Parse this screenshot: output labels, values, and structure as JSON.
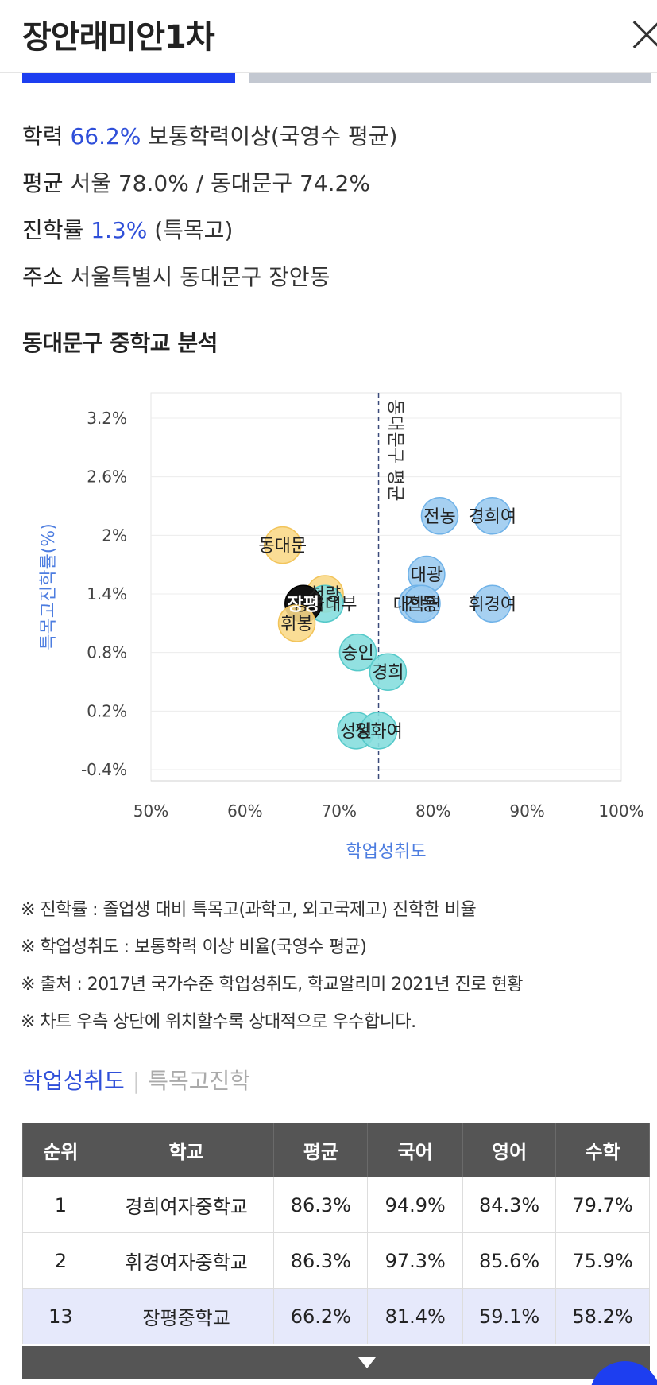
{
  "header": {
    "title": "장안래미안1차"
  },
  "info": {
    "achievement": {
      "label": "학력",
      "value": "66.2%",
      "suffix": "보통학력이상(국영수 평균)"
    },
    "average": {
      "label": "평균",
      "text": "서울 78.0% / 동대문구 74.2%"
    },
    "admission": {
      "label": "진학률",
      "value": "1.3%",
      "suffix": "(특목고)"
    },
    "address": {
      "label": "주소",
      "text": "서울특별시 동대문구 장안동"
    }
  },
  "section_title": "동대문구 중학교 분석",
  "chart_data": {
    "type": "scatter",
    "xlabel": "학업성취도",
    "ylabel": "특목고진학률(%)",
    "xlim": [
      50,
      100
    ],
    "ylim": [
      -0.4,
      3.6
    ],
    "x_ticks": [
      "50%",
      "60%",
      "70%",
      "80%",
      "90%",
      "100%"
    ],
    "y_ticks": [
      "3.2%",
      "2.6%",
      "2%",
      "1.4%",
      "0.8%",
      "0.2%",
      "-0.4%"
    ],
    "avg_line": {
      "x": 74.2,
      "label": "동대문구 평균"
    },
    "colors": {
      "blue": "#9ccbf0",
      "blue_stroke": "#6fb2e8",
      "yellow": "#fad98a",
      "yellow_stroke": "#f2c45a",
      "teal": "#86dede",
      "teal_stroke": "#55c9c9",
      "black": "#111111"
    },
    "points": [
      {
        "label": "전농",
        "x": 80.7,
        "y": 2.2,
        "group": "blue"
      },
      {
        "label": "경희여",
        "x": 86.3,
        "y": 2.2,
        "group": "blue"
      },
      {
        "label": "동대문",
        "x": 64.0,
        "y": 1.9,
        "group": "yellow"
      },
      {
        "label": "대광",
        "x": 79.3,
        "y": 1.6,
        "group": "blue"
      },
      {
        "label": "청량",
        "x": 68.5,
        "y": 1.4,
        "group": "yellow"
      },
      {
        "label": "동국대부",
        "x": 68.5,
        "y": 1.3,
        "group": "teal"
      },
      {
        "label": "장평",
        "x": 66.2,
        "y": 1.3,
        "group": "black"
      },
      {
        "label": "휘봉",
        "x": 65.5,
        "y": 1.1,
        "group": "yellow"
      },
      {
        "label": "대학연",
        "x": 78.3,
        "y": 1.3,
        "group": "blue"
      },
      {
        "label": "전동",
        "x": 78.8,
        "y": 1.3,
        "group": "blue"
      },
      {
        "label": "휘경여",
        "x": 86.3,
        "y": 1.3,
        "group": "blue"
      },
      {
        "label": "숭인",
        "x": 72.0,
        "y": 0.8,
        "group": "teal"
      },
      {
        "label": "경희",
        "x": 75.2,
        "y": 0.6,
        "group": "teal"
      },
      {
        "label": "성일",
        "x": 71.8,
        "y": 0.0,
        "group": "teal"
      },
      {
        "label": "정화여",
        "x": 74.2,
        "y": 0.0,
        "group": "teal"
      }
    ]
  },
  "notes": [
    "※ 진학률 : 졸업생 대비 특목고(과학고, 외고국제고) 진학한 비율",
    "※ 학업성취도 : 보통학력 이상 비율(국영수 평균)",
    "※ 출처 : 2017년 국가수준 학업성취도, 학교알리미 2021년 진로 현황",
    "※ 차트 우측 상단에 위치할수록 상대적으로 우수합니다."
  ],
  "subtabs": {
    "active": "학업성취도",
    "separator": "|",
    "inactive": "특목고진학"
  },
  "table": {
    "headers": [
      "순위",
      "학교",
      "평균",
      "국어",
      "영어",
      "수학"
    ],
    "rows": [
      [
        "1",
        "경희여자중학교",
        "86.3%",
        "94.9%",
        "84.3%",
        "79.7%"
      ],
      [
        "2",
        "휘경여자중학교",
        "86.3%",
        "97.3%",
        "85.6%",
        "75.9%"
      ],
      [
        "13",
        "장평중학교",
        "66.2%",
        "81.4%",
        "59.1%",
        "58.2%"
      ]
    ],
    "highlight_row": 2
  }
}
